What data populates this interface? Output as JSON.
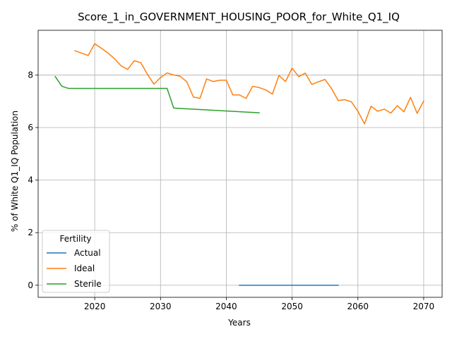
{
  "chart_data": {
    "type": "line",
    "title": "Score_1_in_GOVERNMENT_HOUSING_POOR_for_White_Q1_IQ",
    "xlabel": "Years",
    "ylabel": "% of White Q1_IQ Population",
    "xlim": [
      2011.4,
      2072.8
    ],
    "ylim": [
      -0.46,
      9.7
    ],
    "xticks": [
      2020,
      2030,
      2040,
      2050,
      2060,
      2070
    ],
    "yticks": [
      0,
      2,
      4,
      6,
      8
    ],
    "grid": true,
    "legend": {
      "title": "Fertility",
      "placement": "lower-left"
    },
    "series": [
      {
        "name": "Actual",
        "color": "#1f77b4",
        "x": [
          2042,
          2043,
          2044,
          2045,
          2046,
          2047,
          2048,
          2049,
          2050,
          2051,
          2052,
          2053,
          2054,
          2055,
          2056,
          2057
        ],
        "y": [
          0,
          0,
          0,
          0,
          0,
          0,
          0,
          0,
          0,
          0,
          0,
          0,
          0,
          0,
          0,
          0
        ]
      },
      {
        "name": "Ideal",
        "color": "#ff7f0e",
        "x": [
          2017,
          2018,
          2019,
          2020,
          2021,
          2022,
          2023,
          2024,
          2025,
          2026,
          2027,
          2028,
          2029,
          2030,
          2031,
          2032,
          2033,
          2034,
          2035,
          2036,
          2037,
          2038,
          2039,
          2040,
          2041,
          2042,
          2043,
          2044,
          2045,
          2046,
          2047,
          2048,
          2049,
          2050,
          2051,
          2052,
          2053,
          2054,
          2055,
          2056,
          2057,
          2058,
          2059,
          2060,
          2061,
          2062,
          2063,
          2064,
          2065,
          2066,
          2067,
          2068,
          2069,
          2070
        ],
        "y": [
          8.92,
          8.83,
          8.74,
          9.19,
          9.02,
          8.84,
          8.62,
          8.35,
          8.21,
          8.54,
          8.47,
          8.03,
          7.65,
          7.9,
          8.08,
          8.0,
          7.95,
          7.74,
          7.16,
          7.11,
          7.85,
          7.75,
          7.8,
          7.8,
          7.24,
          7.24,
          7.11,
          7.57,
          7.52,
          7.43,
          7.27,
          7.98,
          7.75,
          8.26,
          7.94,
          8.07,
          7.64,
          7.74,
          7.83,
          7.48,
          7.03,
          7.06,
          6.98,
          6.62,
          6.14,
          6.81,
          6.62,
          6.7,
          6.55,
          6.83,
          6.6,
          7.15,
          6.54,
          7.01
        ]
      },
      {
        "name": "Sterile",
        "color": "#2ca02c",
        "x": [
          2014,
          2015,
          2016,
          2017,
          2018,
          2019,
          2020,
          2021,
          2022,
          2023,
          2024,
          2025,
          2026,
          2027,
          2028,
          2029,
          2030,
          2031,
          2032,
          2045
        ],
        "y": [
          7.94,
          7.57,
          7.49,
          7.49,
          7.49,
          7.49,
          7.49,
          7.49,
          7.49,
          7.49,
          7.49,
          7.49,
          7.49,
          7.49,
          7.49,
          7.49,
          7.49,
          7.49,
          6.74,
          6.56
        ]
      }
    ]
  }
}
